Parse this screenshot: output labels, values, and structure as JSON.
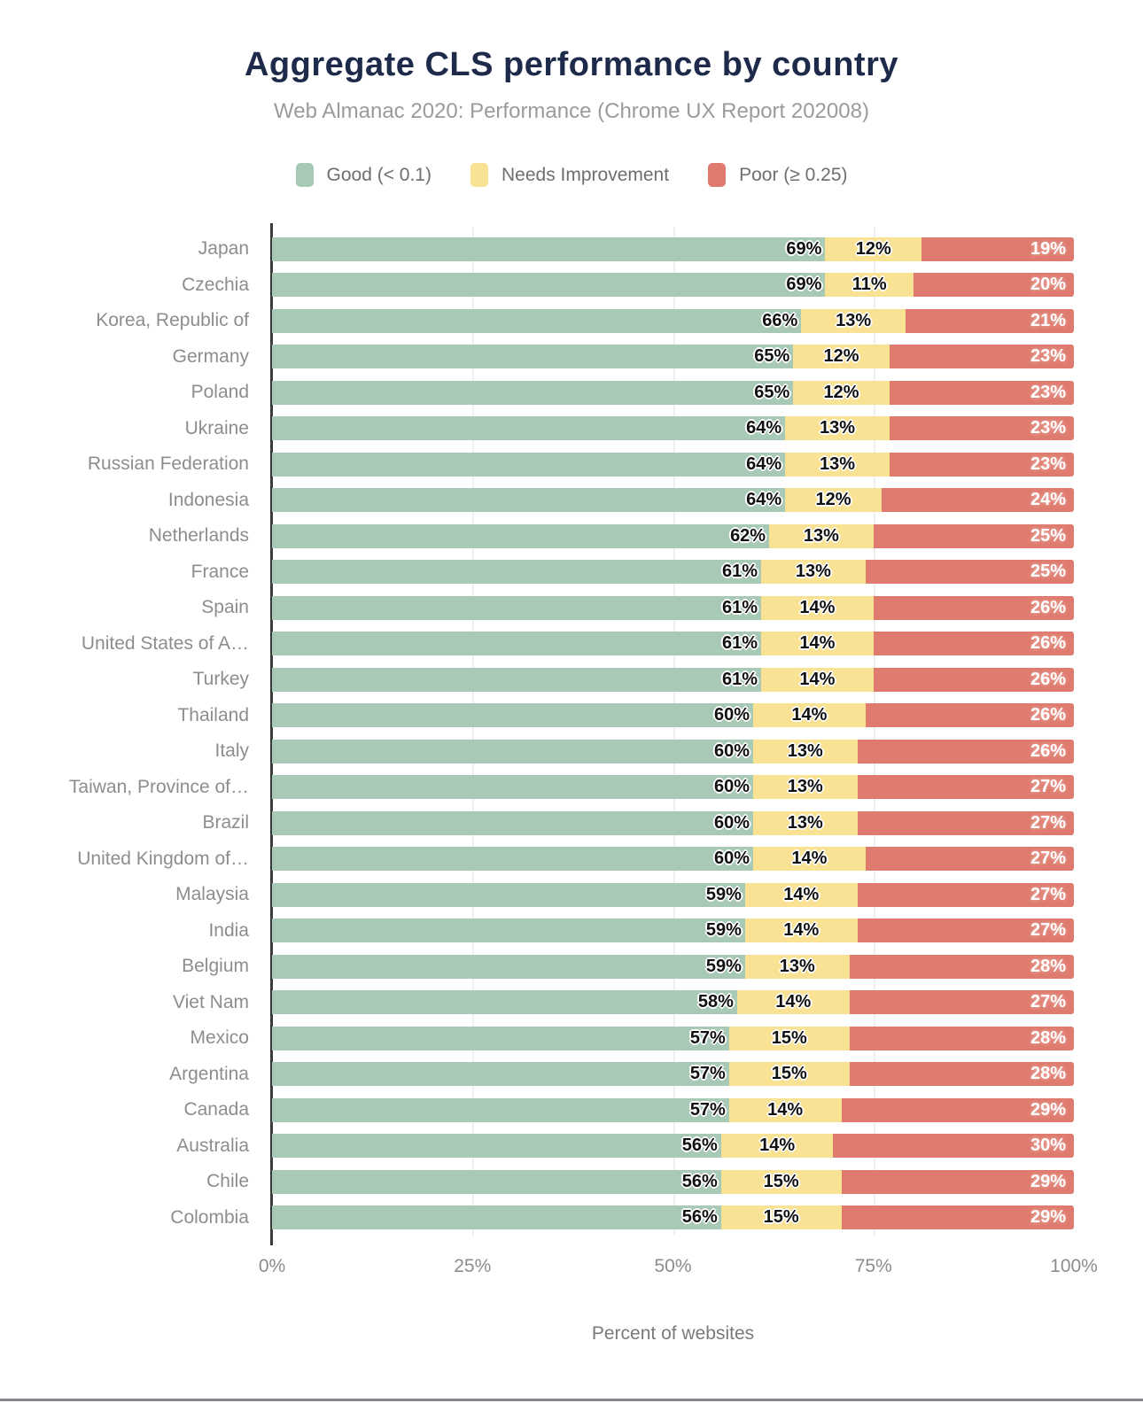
{
  "header": {
    "title": "Aggregate CLS performance by country",
    "subtitle": "Web Almanac 2020: Performance (Chrome UX Report 202008)"
  },
  "colors": {
    "good": "#a7c9b6",
    "needs_improvement": "#f9e294",
    "poor": "#df7b6e",
    "title": "#1e2a4a",
    "subtitle": "#9b9b9b"
  },
  "legend": {
    "items": [
      {
        "name": "good",
        "label": "Good (< 0.1)",
        "color": "#a7c9b6"
      },
      {
        "name": "needs-improvement",
        "label": "Needs Improvement",
        "color": "#f9e294"
      },
      {
        "name": "poor",
        "label": "Poor (≥ 0.25)",
        "color": "#df7b6e"
      }
    ]
  },
  "xaxis": {
    "ticks": [
      "0%",
      "25%",
      "50%",
      "75%",
      "100%"
    ],
    "label": "Percent of websites"
  },
  "chart_data": {
    "type": "bar",
    "orientation": "horizontal",
    "stacked": true,
    "unit": "%",
    "xlim": [
      0,
      100
    ],
    "grid": "vertical-light",
    "legend_position": "top",
    "title": "Aggregate CLS performance by country",
    "subtitle": "Web Almanac 2020: Performance (Chrome UX Report 202008)",
    "xlabel": "Percent of websites",
    "categories": [
      "Japan",
      "Czechia",
      "Korea, Republic of",
      "Germany",
      "Poland",
      "Ukraine",
      "Russian Federation",
      "Indonesia",
      "Netherlands",
      "France",
      "Spain",
      "United States of A…",
      "Turkey",
      "Thailand",
      "Italy",
      "Taiwan, Province of…",
      "Brazil",
      "United Kingdom of…",
      "Malaysia",
      "India",
      "Belgium",
      "Viet Nam",
      "Mexico",
      "Argentina",
      "Canada",
      "Australia",
      "Chile",
      "Colombia"
    ],
    "series": [
      {
        "name": "Good (< 0.1)",
        "values": [
          69,
          69,
          66,
          65,
          65,
          64,
          64,
          64,
          62,
          61,
          61,
          61,
          61,
          60,
          60,
          60,
          60,
          60,
          59,
          59,
          59,
          58,
          57,
          57,
          57,
          56,
          56,
          56
        ]
      },
      {
        "name": "Needs Improvement",
        "values": [
          12,
          11,
          13,
          12,
          12,
          13,
          13,
          12,
          13,
          13,
          14,
          14,
          14,
          14,
          13,
          13,
          13,
          14,
          14,
          14,
          13,
          14,
          15,
          15,
          14,
          14,
          15,
          15
        ]
      },
      {
        "name": "Poor (≥ 0.25)",
        "values": [
          19,
          20,
          21,
          23,
          23,
          23,
          23,
          24,
          25,
          25,
          26,
          26,
          26,
          26,
          26,
          27,
          27,
          27,
          27,
          27,
          28,
          27,
          28,
          28,
          29,
          30,
          29,
          29
        ]
      }
    ]
  }
}
